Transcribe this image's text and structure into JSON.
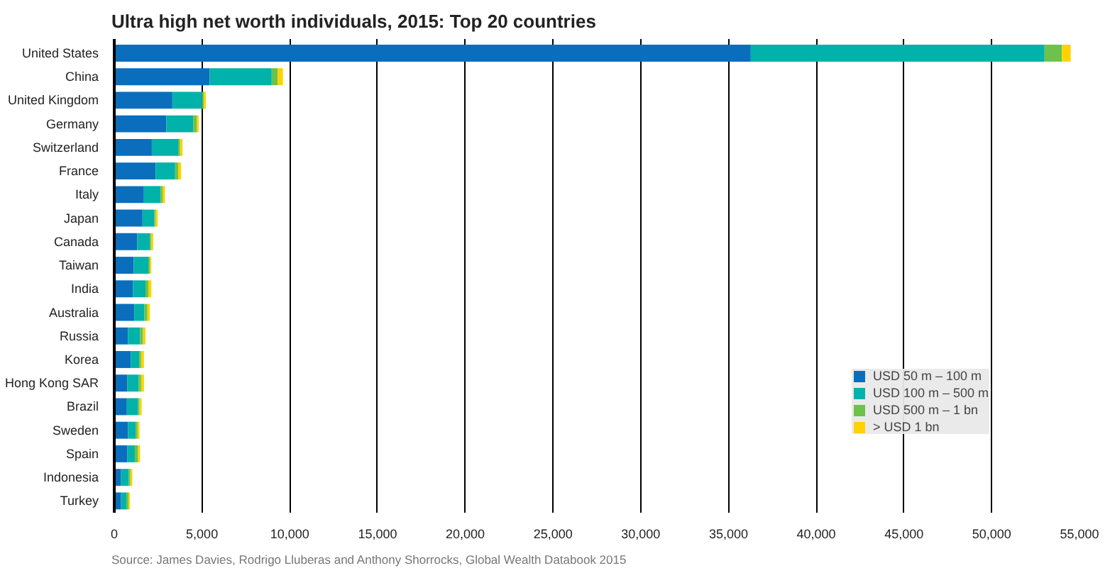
{
  "chart_data": {
    "type": "bar",
    "orientation": "horizontal",
    "stacked": true,
    "title": "Ultra high net worth individuals, 2015: Top 20 countries",
    "categories": [
      "United States",
      "China",
      "United Kingdom",
      "Germany",
      "Switzerland",
      "France",
      "Italy",
      "Japan",
      "Canada",
      "Taiwan",
      "India",
      "Australia",
      "Russia",
      "Korea",
      "Hong Kong SAR",
      "Brazil",
      "Sweden",
      "Spain",
      "Indonesia",
      "Turkey"
    ],
    "series": [
      {
        "name": "USD 50 m – 100 m",
        "color": "#0a6ebd",
        "values": [
          36270,
          5440,
          3310,
          2970,
          2140,
          2360,
          1690,
          1610,
          1310,
          1110,
          1060,
          1140,
          780,
          940,
          750,
          720,
          780,
          750,
          390,
          390
        ]
      },
      {
        "name": "USD 100 m – 500 m",
        "color": "#00b2a9",
        "values": [
          16740,
          3530,
          1690,
          1530,
          1500,
          1110,
          950,
          670,
          720,
          830,
          720,
          580,
          690,
          480,
          640,
          640,
          440,
          420,
          440,
          300
        ]
      },
      {
        "name": "USD 500 m – 1 bn",
        "color": "#6cc24a",
        "values": [
          990,
          340,
          110,
          190,
          110,
          170,
          110,
          80,
          80,
          90,
          160,
          170,
          170,
          110,
          140,
          80,
          110,
          190,
          90,
          120
        ]
      },
      {
        "name": "> USD 1 bn",
        "color": "#ffd200",
        "values": [
          500,
          300,
          110,
          120,
          140,
          170,
          140,
          110,
          110,
          80,
          170,
          140,
          140,
          160,
          160,
          120,
          110,
          110,
          110,
          80
        ]
      }
    ],
    "xlim": [
      0,
      55000
    ],
    "xticks": [
      {
        "value": 0,
        "label": "0"
      },
      {
        "value": 5000,
        "label": "5,000"
      },
      {
        "value": 10000,
        "label": "10,000"
      },
      {
        "value": 15000,
        "label": "15,000"
      },
      {
        "value": 20000,
        "label": "20,000"
      },
      {
        "value": 25000,
        "label": "25,000"
      },
      {
        "value": 30000,
        "label": "30,000"
      },
      {
        "value": 35000,
        "label": "35,000"
      },
      {
        "value": 40000,
        "label": "40,000"
      },
      {
        "value": 45000,
        "label": "45,000"
      },
      {
        "value": 50000,
        "label": "50,000"
      },
      {
        "value": 55000,
        "label": "55,000"
      }
    ],
    "grid": "x",
    "legend": "right",
    "annotations": [
      "Source: James Davies, Rodrigo Lluberas and Anthony Shorrocks, Global Wealth Databook 2015"
    ]
  }
}
